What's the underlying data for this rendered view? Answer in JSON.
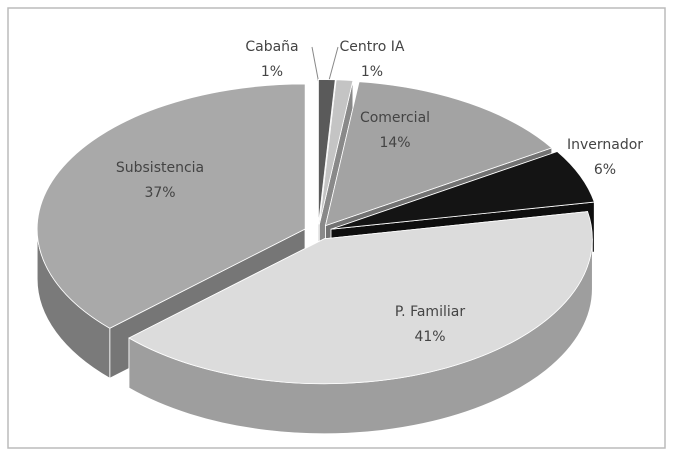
{
  "chart_data": {
    "type": "pie",
    "categories": [
      "Cabaña",
      "Centro IA",
      "Comercial",
      "Invernador",
      "P. Familiar",
      "Subsistencia"
    ],
    "values": [
      1,
      1,
      14,
      6,
      41,
      37
    ],
    "value_labels": [
      "1%",
      "1%",
      "14%",
      "6%",
      "41%",
      "37%"
    ],
    "colors": [
      "#5a5a5a",
      "#c4c4c4",
      "#a3a3a3",
      "#141414",
      "#dcdcdc",
      "#a9a9a9"
    ]
  }
}
